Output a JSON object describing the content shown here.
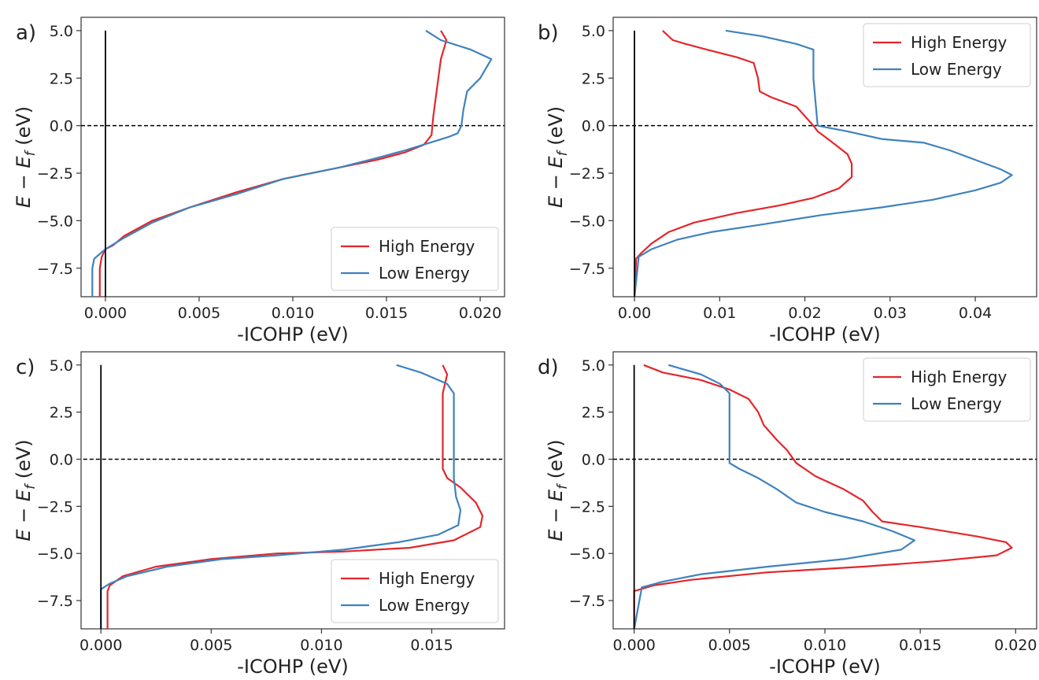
{
  "colors": {
    "high": "#e3262b",
    "low": "#3f82bd",
    "axes": "#333333",
    "zero_line": "#000000"
  },
  "chart_data": [
    {
      "panel": "a)",
      "type": "line",
      "xlabel": "-ICOHP (eV)",
      "ylabel": "E − E_f (eV)",
      "xlim": [
        -0.0013,
        0.0213
      ],
      "ylim": [
        -9.0,
        5.7
      ],
      "xticks": [
        0.0,
        0.005,
        0.01,
        0.015,
        0.02
      ],
      "xtick_labels": [
        "0.000",
        "0.005",
        "0.010",
        "0.015",
        "0.020"
      ],
      "yticks": [
        5.0,
        2.5,
        0.0,
        -2.5,
        -5.0,
        -7.5
      ],
      "ytick_labels": [
        "5.0",
        "2.5",
        "0.0",
        "−2.5",
        "−5.0",
        "−7.5"
      ],
      "fermi_line": {
        "y": 0.0,
        "x_range": [
          -0.0013,
          0.0213
        ]
      },
      "zero_line": {
        "x": 0.0,
        "y_range": [
          -9.0,
          5.0
        ]
      },
      "legend": "lower right",
      "series": [
        {
          "name": "High Energy",
          "color_key": "high",
          "points": [
            [
              0.0179,
              5.0
            ],
            [
              0.0182,
              4.5
            ],
            [
              0.0179,
              3.5
            ],
            [
              0.0177,
              2.0
            ],
            [
              0.0175,
              0.5
            ],
            [
              0.0174,
              -0.5
            ],
            [
              0.017,
              -1.0
            ],
            [
              0.016,
              -1.4
            ],
            [
              0.0145,
              -1.8
            ],
            [
              0.012,
              -2.3
            ],
            [
              0.0095,
              -2.8
            ],
            [
              0.007,
              -3.5
            ],
            [
              0.0045,
              -4.3
            ],
            [
              0.0025,
              -5.0
            ],
            [
              0.001,
              -5.8
            ],
            [
              0.0004,
              -6.3
            ],
            [
              0.0,
              -6.5
            ],
            [
              -0.0002,
              -6.9
            ],
            [
              -0.0003,
              -7.5
            ],
            [
              -0.0003,
              -9.0
            ]
          ]
        },
        {
          "name": "Low Energy",
          "color_key": "low",
          "points": [
            [
              0.0171,
              5.0
            ],
            [
              0.0179,
              4.5
            ],
            [
              0.0195,
              4.0
            ],
            [
              0.0206,
              3.5
            ],
            [
              0.0203,
              3.0
            ],
            [
              0.02,
              2.5
            ],
            [
              0.0197,
              2.2
            ],
            [
              0.0193,
              1.8
            ],
            [
              0.0191,
              0.8
            ],
            [
              0.019,
              0.0
            ],
            [
              0.0188,
              -0.4
            ],
            [
              0.0183,
              -0.6
            ],
            [
              0.0173,
              -0.9
            ],
            [
              0.016,
              -1.3
            ],
            [
              0.0145,
              -1.7
            ],
            [
              0.0125,
              -2.2
            ],
            [
              0.0095,
              -2.8
            ],
            [
              0.007,
              -3.6
            ],
            [
              0.0045,
              -4.3
            ],
            [
              0.0025,
              -5.1
            ],
            [
              0.001,
              -5.9
            ],
            [
              0.0,
              -6.5
            ],
            [
              -0.0006,
              -7.0
            ],
            [
              -0.0007,
              -7.5
            ],
            [
              -0.0007,
              -9.0
            ]
          ]
        }
      ]
    },
    {
      "panel": "b)",
      "type": "line",
      "xlabel": "-ICOHP (eV)",
      "ylabel": "E − E_f (eV)",
      "xlim": [
        -0.0025,
        0.0472
      ],
      "ylim": [
        -9.0,
        5.7
      ],
      "xticks": [
        0.0,
        0.01,
        0.02,
        0.03,
        0.04
      ],
      "xtick_labels": [
        "0.00",
        "0.01",
        "0.02",
        "0.03",
        "0.04"
      ],
      "yticks": [
        5.0,
        2.5,
        0.0,
        -2.5,
        -5.0,
        -7.5
      ],
      "ytick_labels": [
        "5.0",
        "2.5",
        "0.0",
        "−2.5",
        "−5.0",
        "−7.5"
      ],
      "fermi_line": {
        "y": 0.0,
        "x_range": [
          -0.0025,
          0.047
        ]
      },
      "zero_line": {
        "x": 0.0,
        "y_range": [
          -9.0,
          5.0
        ]
      },
      "legend": "upper right",
      "series": [
        {
          "name": "High Energy",
          "color_key": "high",
          "points": [
            [
              0.0033,
              5.0
            ],
            [
              0.0045,
              4.5
            ],
            [
              0.006,
              4.3
            ],
            [
              0.0085,
              4.0
            ],
            [
              0.012,
              3.6
            ],
            [
              0.014,
              3.3
            ],
            [
              0.0145,
              2.5
            ],
            [
              0.0147,
              1.8
            ],
            [
              0.016,
              1.5
            ],
            [
              0.019,
              1.0
            ],
            [
              0.02,
              0.5
            ],
            [
              0.021,
              0.0
            ],
            [
              0.0215,
              -0.3
            ],
            [
              0.023,
              -0.8
            ],
            [
              0.025,
              -1.5
            ],
            [
              0.0255,
              -2.0
            ],
            [
              0.0255,
              -2.7
            ],
            [
              0.024,
              -3.3
            ],
            [
              0.021,
              -3.8
            ],
            [
              0.017,
              -4.2
            ],
            [
              0.012,
              -4.6
            ],
            [
              0.007,
              -5.1
            ],
            [
              0.004,
              -5.6
            ],
            [
              0.002,
              -6.2
            ],
            [
              0.0008,
              -6.7
            ],
            [
              0.0002,
              -7.0
            ],
            [
              0.0,
              -9.0
            ]
          ]
        },
        {
          "name": "Low Energy",
          "color_key": "low",
          "points": [
            [
              0.0107,
              5.0
            ],
            [
              0.015,
              4.7
            ],
            [
              0.019,
              4.3
            ],
            [
              0.021,
              4.0
            ],
            [
              0.021,
              2.5
            ],
            [
              0.0213,
              1.0
            ],
            [
              0.0215,
              0.0
            ],
            [
              0.025,
              -0.3
            ],
            [
              0.029,
              -0.7
            ],
            [
              0.034,
              -0.9
            ],
            [
              0.037,
              -1.3
            ],
            [
              0.04,
              -1.8
            ],
            [
              0.043,
              -2.3
            ],
            [
              0.0443,
              -2.6
            ],
            [
              0.043,
              -3.0
            ],
            [
              0.04,
              -3.4
            ],
            [
              0.035,
              -3.9
            ],
            [
              0.029,
              -4.3
            ],
            [
              0.022,
              -4.7
            ],
            [
              0.015,
              -5.2
            ],
            [
              0.009,
              -5.6
            ],
            [
              0.005,
              -6.0
            ],
            [
              0.002,
              -6.5
            ],
            [
              0.0005,
              -6.9
            ],
            [
              0.0,
              -9.0
            ]
          ]
        }
      ]
    },
    {
      "panel": "c)",
      "type": "line",
      "xlabel": "-ICOHP (eV)",
      "ylabel": "E − E_f (eV)",
      "xlim": [
        -0.0009,
        0.0183
      ],
      "ylim": [
        -9.0,
        5.7
      ],
      "xticks": [
        0.0,
        0.005,
        0.01,
        0.015
      ],
      "xtick_labels": [
        "0.000",
        "0.005",
        "0.010",
        "0.015"
      ],
      "yticks": [
        5.0,
        2.5,
        0.0,
        -2.5,
        -5.0,
        -7.5
      ],
      "ytick_labels": [
        "5.0",
        "2.5",
        "0.0",
        "−2.5",
        "−5.0",
        "−7.5"
      ],
      "fermi_line": {
        "y": 0.0,
        "x_range": [
          -0.0008,
          0.0182
        ]
      },
      "zero_line": {
        "x": 0.0,
        "y_range": [
          -9.0,
          5.0
        ]
      },
      "legend": "lower right",
      "series": [
        {
          "name": "High Energy",
          "color_key": "high",
          "points": [
            [
              0.0155,
              5.0
            ],
            [
              0.0157,
              4.5
            ],
            [
              0.0155,
              3.5
            ],
            [
              0.0155,
              1.0
            ],
            [
              0.0155,
              -0.5
            ],
            [
              0.0157,
              -1.0
            ],
            [
              0.0163,
              -1.5
            ],
            [
              0.017,
              -2.3
            ],
            [
              0.0173,
              -3.0
            ],
            [
              0.0172,
              -3.6
            ],
            [
              0.016,
              -4.3
            ],
            [
              0.014,
              -4.7
            ],
            [
              0.011,
              -4.9
            ],
            [
              0.008,
              -5.0
            ],
            [
              0.005,
              -5.3
            ],
            [
              0.0025,
              -5.7
            ],
            [
              0.001,
              -6.2
            ],
            [
              0.0004,
              -6.7
            ],
            [
              0.0003,
              -7.0
            ],
            [
              0.0003,
              -9.0
            ]
          ]
        },
        {
          "name": "Low Energy",
          "color_key": "low",
          "points": [
            [
              0.0134,
              5.0
            ],
            [
              0.0145,
              4.6
            ],
            [
              0.0157,
              4.0
            ],
            [
              0.016,
              3.5
            ],
            [
              0.016,
              1.0
            ],
            [
              0.016,
              -1.0
            ],
            [
              0.0161,
              -2.0
            ],
            [
              0.0163,
              -2.7
            ],
            [
              0.0162,
              -3.5
            ],
            [
              0.0153,
              -4.0
            ],
            [
              0.0135,
              -4.4
            ],
            [
              0.011,
              -4.8
            ],
            [
              0.008,
              -5.1
            ],
            [
              0.0055,
              -5.3
            ],
            [
              0.003,
              -5.7
            ],
            [
              0.0012,
              -6.2
            ],
            [
              0.0004,
              -6.6
            ],
            [
              0.0,
              -6.9
            ],
            [
              0.0,
              -9.0
            ]
          ]
        }
      ]
    },
    {
      "panel": "d)",
      "type": "line",
      "xlabel": "-ICOHP (eV)",
      "ylabel": "E − E_f (eV)",
      "xlim": [
        -0.0011,
        0.0211
      ],
      "ylim": [
        -9.0,
        5.7
      ],
      "xticks": [
        0.0,
        0.005,
        0.01,
        0.015,
        0.02
      ],
      "xtick_labels": [
        "0.000",
        "0.005",
        "0.010",
        "0.015",
        "0.020"
      ],
      "yticks": [
        5.0,
        2.5,
        0.0,
        -2.5,
        -5.0,
        -7.5
      ],
      "ytick_labels": [
        "5.0",
        "2.5",
        "0.0",
        "−2.5",
        "−5.0",
        "−7.5"
      ],
      "fermi_line": {
        "y": 0.0,
        "x_range": [
          -0.0011,
          0.0211
        ]
      },
      "zero_line": {
        "x": 0.0,
        "y_range": [
          -9.0,
          5.0
        ]
      },
      "legend": "upper right",
      "series": [
        {
          "name": "High Energy",
          "color_key": "high",
          "points": [
            [
              0.0005,
              5.0
            ],
            [
              0.0015,
              4.6
            ],
            [
              0.0035,
              4.2
            ],
            [
              0.005,
              3.7
            ],
            [
              0.006,
              3.2
            ],
            [
              0.0065,
              2.5
            ],
            [
              0.0068,
              1.8
            ],
            [
              0.0075,
              1.0
            ],
            [
              0.008,
              0.5
            ],
            [
              0.0085,
              -0.2
            ],
            [
              0.0095,
              -0.9
            ],
            [
              0.011,
              -1.6
            ],
            [
              0.012,
              -2.2
            ],
            [
              0.0125,
              -2.8
            ],
            [
              0.013,
              -3.3
            ],
            [
              0.015,
              -3.6
            ],
            [
              0.018,
              -4.1
            ],
            [
              0.0195,
              -4.4
            ],
            [
              0.0198,
              -4.7
            ],
            [
              0.019,
              -5.1
            ],
            [
              0.016,
              -5.4
            ],
            [
              0.012,
              -5.7
            ],
            [
              0.007,
              -6.0
            ],
            [
              0.003,
              -6.4
            ],
            [
              0.001,
              -6.7
            ],
            [
              0.0,
              -7.0
            ],
            [
              0.0,
              -9.0
            ]
          ]
        },
        {
          "name": "Low Energy",
          "color_key": "low",
          "points": [
            [
              0.0018,
              5.0
            ],
            [
              0.0035,
              4.5
            ],
            [
              0.0045,
              4.0
            ],
            [
              0.005,
              3.5
            ],
            [
              0.005,
              2.0
            ],
            [
              0.005,
              0.5
            ],
            [
              0.005,
              -0.2
            ],
            [
              0.0055,
              -0.5
            ],
            [
              0.0065,
              -1.0
            ],
            [
              0.0075,
              -1.6
            ],
            [
              0.0085,
              -2.3
            ],
            [
              0.01,
              -2.8
            ],
            [
              0.012,
              -3.3
            ],
            [
              0.0135,
              -3.8
            ],
            [
              0.0147,
              -4.3
            ],
            [
              0.014,
              -4.8
            ],
            [
              0.011,
              -5.3
            ],
            [
              0.007,
              -5.7
            ],
            [
              0.0035,
              -6.1
            ],
            [
              0.0015,
              -6.5
            ],
            [
              0.0004,
              -6.8
            ],
            [
              0.0,
              -9.0
            ]
          ]
        }
      ]
    }
  ]
}
